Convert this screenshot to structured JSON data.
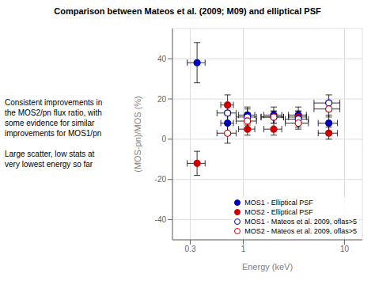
{
  "chart_data": {
    "type": "scatter",
    "title": "Comparison between Mateos et al. (2009; M09) and elliptical PSF",
    "x_label": "Energy (keV)",
    "y_label": "(MOS-pn)/MOS (%)",
    "annotations": [
      [
        "Consistent improvements in",
        "the MOS2/pn flux ratio, with",
        "some evidence for similar",
        "improvements for MOS1/pn"
      ],
      [
        "Large scatter, low stats at",
        "very lowest energy so far"
      ]
    ],
    "log": "x",
    "xlim": [
      0.2,
      15
    ],
    "ylim": [
      -50,
      55
    ],
    "xticks": [
      0.3,
      1,
      10
    ],
    "yticks": [
      -40,
      -20,
      0,
      20,
      40
    ],
    "grid": true,
    "legend": "lower right",
    "series": [
      {
        "name": "MOS1 - Elliptical PSF",
        "color": "#0000bb",
        "marker": "circle",
        "x": [
          0.35,
          0.7,
          1.1,
          2.0,
          3.5,
          7.0
        ],
        "values": [
          38,
          8,
          12,
          12,
          12,
          8
        ],
        "x_err_low": [
          0.07,
          0.1,
          0.2,
          0.4,
          0.7,
          1.5
        ],
        "x_err_high": [
          0.07,
          0.1,
          0.2,
          0.4,
          0.7,
          1.5
        ],
        "y_err_low": [
          10,
          6,
          4,
          4,
          4,
          4
        ],
        "y_err_high": [
          10,
          6,
          4,
          4,
          4,
          4
        ]
      },
      {
        "name": "MOS2 - Elliptical PSF",
        "color": "#cc0000",
        "marker": "circle",
        "x": [
          0.35,
          0.7,
          1.1,
          2.0,
          3.5,
          7.0
        ],
        "values": [
          -12,
          17,
          5,
          5,
          11,
          3
        ],
        "x_err_low": [
          0.07,
          0.1,
          0.2,
          0.4,
          0.7,
          1.5
        ],
        "x_err_high": [
          0.07,
          0.1,
          0.2,
          0.4,
          0.7,
          1.5
        ],
        "y_err_low": [
          6,
          5,
          3,
          3,
          3,
          3
        ],
        "y_err_high": [
          6,
          5,
          3,
          3,
          3,
          3
        ]
      },
      {
        "name": "MOS1 - Mateos et al. 2009, oflas>5",
        "color": "#0000bb",
        "marker": "circle-open",
        "x": [
          0.7,
          1.1,
          2.0,
          3.5,
          7.0
        ],
        "values": [
          13,
          11,
          11,
          10,
          18
        ],
        "x_err_low": [
          0.15,
          0.25,
          0.5,
          0.9,
          2.0
        ],
        "x_err_high": [
          0.15,
          0.25,
          0.5,
          0.9,
          2.0
        ],
        "y_err_low": [
          5,
          4,
          3,
          4,
          4
        ],
        "y_err_high": [
          5,
          4,
          3,
          4,
          4
        ]
      },
      {
        "name": "MOS2 - Mateos et al. 2009, oflas>5",
        "color": "#cc0000",
        "marker": "circle-open",
        "x": [
          0.7,
          1.1,
          2.0,
          3.5,
          7.0
        ],
        "values": [
          3,
          9,
          11,
          8,
          15
        ],
        "x_err_low": [
          0.15,
          0.25,
          0.5,
          0.9,
          2.0
        ],
        "x_err_high": [
          0.15,
          0.25,
          0.5,
          0.9,
          2.0
        ],
        "y_err_low": [
          5,
          4,
          3,
          3,
          4
        ],
        "y_err_high": [
          5,
          4,
          3,
          3,
          4
        ]
      }
    ]
  }
}
